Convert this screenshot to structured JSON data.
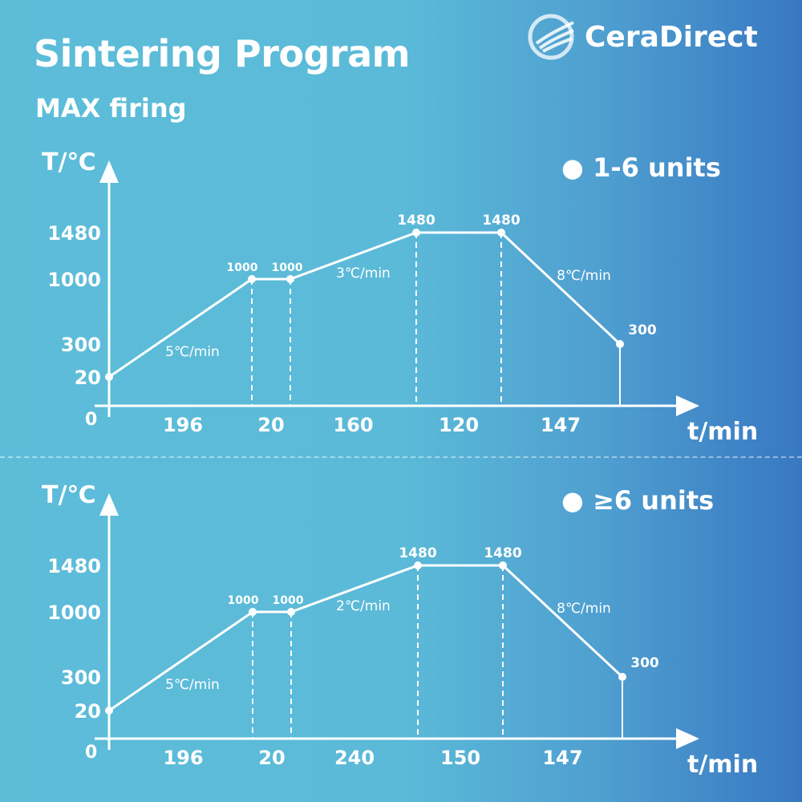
{
  "header": {
    "title": "Sintering Program",
    "subtitle": "MAX firing",
    "brand": "CeraDirect"
  },
  "chart_data": [
    {
      "type": "line",
      "title": "1-6 units",
      "ylabel": "T/℃",
      "xlabel": "t/min",
      "origin_label": "0",
      "yticks": [
        "1480",
        "1000",
        "300",
        "20"
      ],
      "points": [
        20,
        1000,
        1000,
        1480,
        1480,
        300
      ],
      "durations": [
        "196",
        "20",
        "160",
        "120",
        "147"
      ],
      "rates": [
        {
          "segment": 0,
          "label": "5℃/min"
        },
        {
          "segment": 2,
          "label": "3℃/min"
        },
        {
          "segment": 4,
          "label": "8℃/min"
        }
      ]
    },
    {
      "type": "line",
      "title": "≥6 units",
      "ylabel": "T/℃",
      "xlabel": "t/min",
      "origin_label": "0",
      "yticks": [
        "1480",
        "1000",
        "300",
        "20"
      ],
      "points": [
        20,
        1000,
        1000,
        1480,
        1480,
        300
      ],
      "durations": [
        "196",
        "20",
        "240",
        "150",
        "147"
      ],
      "rates": [
        {
          "segment": 0,
          "label": "5℃/min"
        },
        {
          "segment": 2,
          "label": "2℃/min"
        },
        {
          "segment": 4,
          "label": "8℃/min"
        }
      ]
    }
  ]
}
